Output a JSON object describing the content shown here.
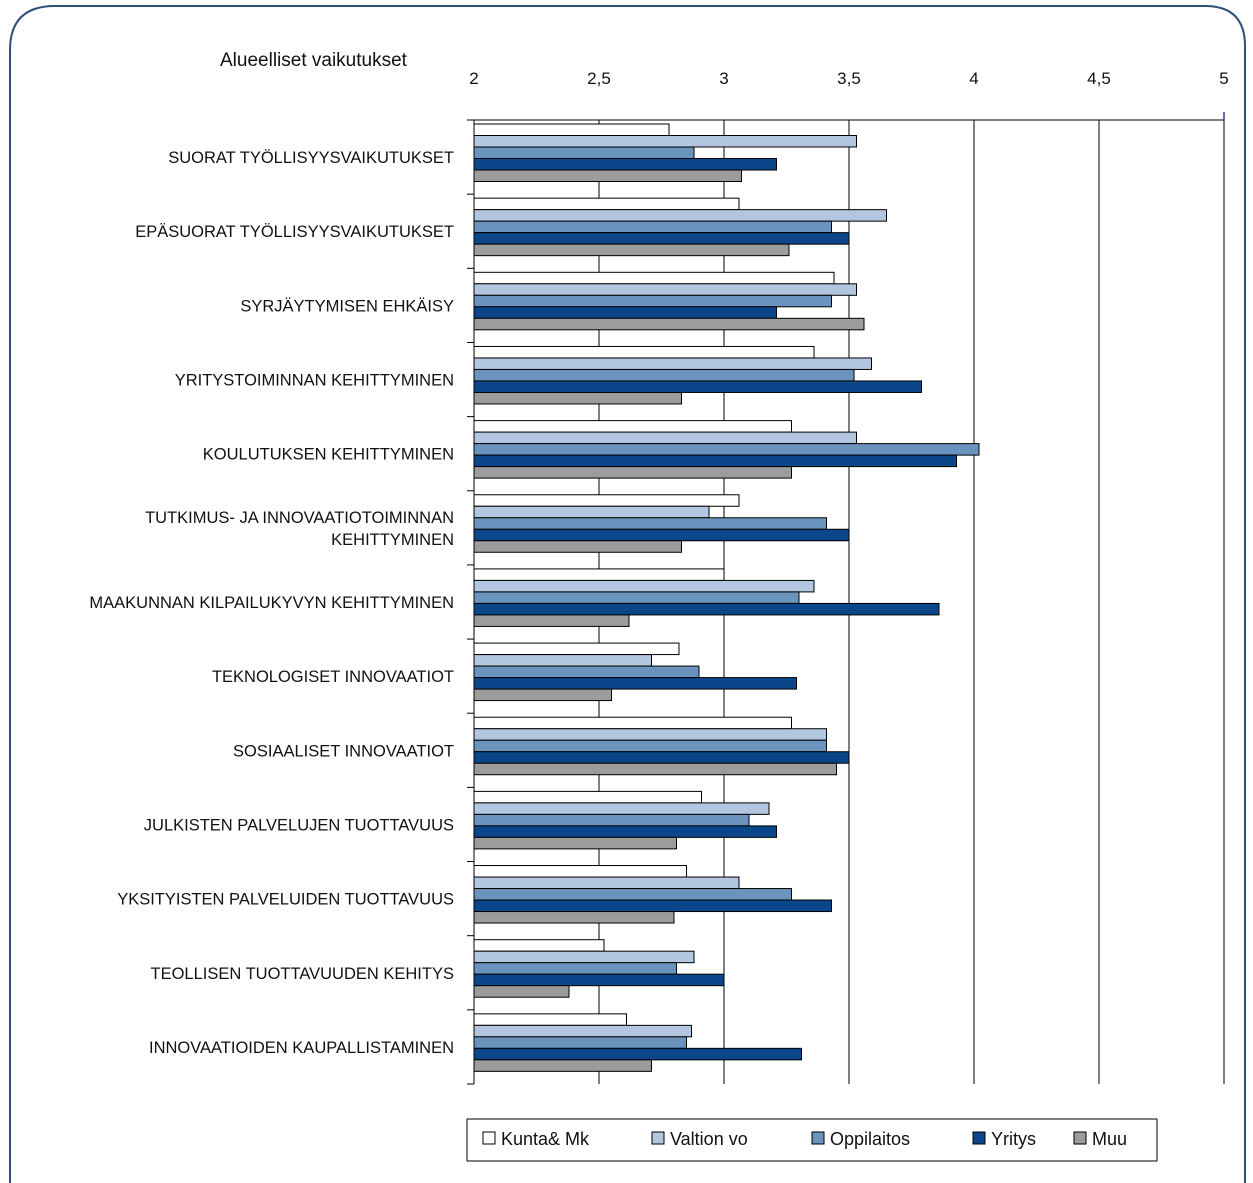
{
  "chart_data": {
    "type": "bar",
    "orientation": "horizontal",
    "title": "Alueelliset vaikutukset",
    "xlim": [
      2,
      5
    ],
    "x_ticks": [
      2,
      2.5,
      3,
      3.5,
      4,
      4.5,
      5
    ],
    "x_tick_labels": [
      "2",
      "2,5",
      "3",
      "3,5",
      "4",
      "4,5",
      "5"
    ],
    "grid": "vertical",
    "legend_position": "bottom",
    "categories": [
      [
        "SUORAT TYÖLLISYYSVAIKUTUKSET"
      ],
      [
        "EPÄSUORAT TYÖLLISYYSVAIKUTUKSET"
      ],
      [
        "SYRJÄYTYMISEN EHKÄISY"
      ],
      [
        "YRITYSTOIMINNAN KEHITTYMINEN"
      ],
      [
        "KOULUTUKSEN KEHITTYMINEN"
      ],
      [
        "TUTKIMUS- JA INNOVAATIOTOIMINNAN",
        "KEHITTYMINEN"
      ],
      [
        "MAAKUNNAN KILPAILUKYVYN KEHITTYMINEN"
      ],
      [
        "TEKNOLOGISET INNOVAATIOT"
      ],
      [
        "SOSIAALISET INNOVAATIOT"
      ],
      [
        "JULKISTEN PALVELUJEN TUOTTAVUUS"
      ],
      [
        "YKSITYISTEN PALVELUIDEN TUOTTAVUUS"
      ],
      [
        "TEOLLISEN TUOTTAVUUDEN KEHITYS"
      ],
      [
        "INNOVAATIOIDEN KAUPALLISTAMINEN"
      ]
    ],
    "series": [
      {
        "name": "Kunta& Mk",
        "color": "#ffffff",
        "values": [
          2.78,
          3.06,
          3.44,
          3.36,
          3.27,
          3.06,
          3.0,
          2.82,
          3.27,
          2.91,
          2.85,
          2.52,
          2.61
        ]
      },
      {
        "name": "Valtion vo",
        "color": "#b3c6df",
        "values": [
          3.53,
          3.65,
          3.53,
          3.59,
          3.53,
          2.94,
          3.36,
          2.71,
          3.41,
          3.18,
          3.06,
          2.88,
          2.87
        ]
      },
      {
        "name": "Oppilaitos",
        "color": "#6a93be",
        "values": [
          2.88,
          3.43,
          3.43,
          3.52,
          4.02,
          3.41,
          3.3,
          2.9,
          3.41,
          3.1,
          3.27,
          2.81,
          2.85
        ]
      },
      {
        "name": "Yritys",
        "color": "#0b468a",
        "values": [
          3.21,
          3.5,
          3.21,
          3.79,
          3.93,
          3.5,
          3.86,
          3.29,
          3.5,
          3.21,
          3.43,
          3.0,
          3.31
        ]
      },
      {
        "name": "Muu",
        "color": "#9c9c9c",
        "values": [
          3.07,
          3.26,
          3.56,
          2.83,
          3.27,
          2.83,
          2.62,
          2.55,
          3.45,
          2.81,
          2.8,
          2.38,
          2.71
        ]
      }
    ]
  }
}
